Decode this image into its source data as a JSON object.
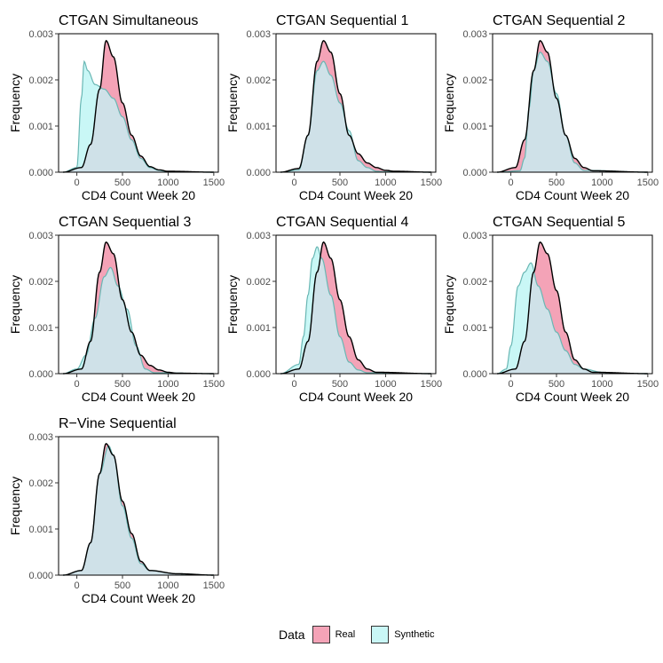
{
  "chart_data": [
    {
      "type": "area",
      "title": "CTGAN Simultaneous",
      "xlabel": "CD4 Count Week 20",
      "ylabel": "Frequency",
      "xlim": [
        -200,
        1550
      ],
      "ylim": [
        0,
        0.003
      ],
      "xticks": [
        0,
        500,
        1000,
        1500
      ],
      "yticks": [
        0,
        0.001,
        0.002,
        0.003
      ],
      "series": [
        {
          "name": "Real",
          "x": [
            -150,
            50,
            150,
            250,
            320,
            400,
            500,
            600,
            700,
            800,
            900,
            1000,
            1500
          ],
          "y": [
            0,
            0.0001,
            0.0006,
            0.0018,
            0.00285,
            0.0025,
            0.0015,
            0.0008,
            0.00035,
            0.00012,
            5e-05,
            2e-05,
            0
          ]
        },
        {
          "name": "Synthetic",
          "x": [
            -150,
            0,
            50,
            80,
            120,
            200,
            300,
            400,
            500,
            600,
            700,
            800,
            900,
            1000,
            1500
          ],
          "y": [
            0,
            0.0001,
            0.0016,
            0.0024,
            0.0022,
            0.0019,
            0.0018,
            0.0016,
            0.0012,
            0.0007,
            0.0003,
            0.0001,
            4e-05,
            1e-05,
            0
          ]
        }
      ]
    },
    {
      "type": "area",
      "title": "CTGAN Sequential 1",
      "xlabel": "CD4 Count Week 20",
      "ylabel": "Frequency",
      "xlim": [
        -200,
        1550
      ],
      "ylim": [
        0,
        0.003
      ],
      "xticks": [
        0,
        500,
        1000,
        1500
      ],
      "yticks": [
        0,
        0.001,
        0.002,
        0.003
      ],
      "series": [
        {
          "name": "Real",
          "x": [
            -150,
            50,
            150,
            250,
            320,
            400,
            500,
            600,
            700,
            800,
            900,
            1000,
            1100,
            1500
          ],
          "y": [
            0,
            8e-05,
            0.0008,
            0.0024,
            0.00285,
            0.0026,
            0.0017,
            0.0008,
            0.0004,
            0.0002,
            0.0001,
            4e-05,
            2e-05,
            0
          ]
        },
        {
          "name": "Synthetic",
          "x": [
            -150,
            50,
            150,
            250,
            320,
            400,
            500,
            600,
            700,
            800,
            900,
            1000,
            1500
          ],
          "y": [
            0,
            5e-05,
            0.0008,
            0.0022,
            0.0024,
            0.0021,
            0.0015,
            0.0009,
            0.00025,
            0.0001,
            2e-05,
            1e-05,
            0
          ]
        }
      ]
    },
    {
      "type": "area",
      "title": "CTGAN Sequential 2",
      "xlabel": "CD4 Count Week 20",
      "ylabel": "Frequency",
      "xlim": [
        -200,
        1550
      ],
      "ylim": [
        0,
        0.003
      ],
      "xticks": [
        0,
        500,
        1000,
        1500
      ],
      "yticks": [
        0,
        0.001,
        0.002,
        0.003
      ],
      "series": [
        {
          "name": "Real",
          "x": [
            -150,
            50,
            150,
            250,
            320,
            400,
            500,
            600,
            700,
            800,
            900,
            1500
          ],
          "y": [
            0,
            0.0001,
            0.0007,
            0.0022,
            0.00285,
            0.0026,
            0.0016,
            0.0008,
            0.0003,
            0.0001,
            3e-05,
            0
          ]
        },
        {
          "name": "Synthetic",
          "x": [
            -150,
            100,
            150,
            200,
            250,
            320,
            400,
            500,
            600,
            700,
            800,
            1500
          ],
          "y": [
            0,
            3e-05,
            0.0003,
            0.0014,
            0.0022,
            0.0026,
            0.0024,
            0.0017,
            0.0008,
            0.0002,
            4e-05,
            0
          ]
        }
      ]
    },
    {
      "type": "area",
      "title": "CTGAN Sequential 3",
      "xlabel": "CD4 Count Week 20",
      "ylabel": "Frequency",
      "xlim": [
        -200,
        1550
      ],
      "ylim": [
        0,
        0.003
      ],
      "xticks": [
        0,
        500,
        1000,
        1500
      ],
      "yticks": [
        0,
        0.001,
        0.002,
        0.003
      ],
      "series": [
        {
          "name": "Real",
          "x": [
            -150,
            50,
            150,
            250,
            320,
            400,
            500,
            600,
            700,
            800,
            900,
            1000,
            1100,
            1500
          ],
          "y": [
            0,
            0.0001,
            0.0007,
            0.0022,
            0.00285,
            0.0026,
            0.0016,
            0.0009,
            0.0004,
            0.00018,
            8e-05,
            3e-05,
            1e-05,
            0
          ]
        },
        {
          "name": "Synthetic",
          "x": [
            -150,
            0,
            100,
            200,
            300,
            370,
            450,
            550,
            650,
            750,
            850,
            1500
          ],
          "y": [
            0,
            0.0001,
            0.0004,
            0.0012,
            0.0021,
            0.0023,
            0.0019,
            0.0014,
            0.0006,
            0.0001,
            2e-05,
            0
          ]
        }
      ]
    },
    {
      "type": "area",
      "title": "CTGAN Sequential 4",
      "xlabel": "CD4 Count Week 20",
      "ylabel": "Frequency",
      "xlim": [
        -200,
        1550
      ],
      "ylim": [
        0,
        0.003
      ],
      "xticks": [
        0,
        500,
        1000,
        1500
      ],
      "yticks": [
        0,
        0.001,
        0.002,
        0.003
      ],
      "series": [
        {
          "name": "Real",
          "x": [
            -150,
            50,
            150,
            250,
            320,
            400,
            500,
            600,
            700,
            800,
            900,
            1500
          ],
          "y": [
            0,
            0.0001,
            0.0007,
            0.0022,
            0.00285,
            0.0025,
            0.0016,
            0.0008,
            0.0003,
            0.0001,
            3e-05,
            0
          ]
        },
        {
          "name": "Synthetic",
          "x": [
            -150,
            50,
            100,
            150,
            200,
            250,
            300,
            400,
            500,
            600,
            700,
            800,
            1500
          ],
          "y": [
            0,
            0.0002,
            0.0008,
            0.0017,
            0.0025,
            0.00275,
            0.0025,
            0.0017,
            0.0008,
            0.00025,
            8e-05,
            2e-05,
            0
          ]
        }
      ]
    },
    {
      "type": "area",
      "title": "CTGAN Sequential 5",
      "xlabel": "CD4 Count Week 20",
      "ylabel": "Frequency",
      "xlim": [
        -200,
        1550
      ],
      "ylim": [
        0,
        0.003
      ],
      "xticks": [
        0,
        500,
        1000,
        1500
      ],
      "yticks": [
        0,
        0.001,
        0.002,
        0.003
      ],
      "series": [
        {
          "name": "Real",
          "x": [
            -150,
            50,
            150,
            250,
            320,
            400,
            500,
            600,
            700,
            800,
            900,
            1500
          ],
          "y": [
            0,
            0.0001,
            0.0007,
            0.0022,
            0.00285,
            0.0026,
            0.0018,
            0.0009,
            0.0003,
            0.0001,
            3e-05,
            0
          ]
        },
        {
          "name": "Synthetic",
          "x": [
            -150,
            -50,
            0,
            80,
            150,
            220,
            300,
            400,
            500,
            600,
            700,
            800,
            1000,
            1100,
            1500
          ],
          "y": [
            0,
            0.0001,
            0.0006,
            0.0019,
            0.0022,
            0.0024,
            0.0019,
            0.0014,
            0.0009,
            0.0005,
            0.0002,
            0.0001,
            3e-05,
            1e-05,
            0
          ]
        }
      ]
    },
    {
      "type": "area",
      "title": "R−Vine Sequential",
      "xlabel": "CD4 Count Week 20",
      "ylabel": "Frequency",
      "xlim": [
        -200,
        1550
      ],
      "ylim": [
        0,
        0.003
      ],
      "xticks": [
        0,
        500,
        1000,
        1500
      ],
      "yticks": [
        0,
        0.001,
        0.002,
        0.003
      ],
      "series": [
        {
          "name": "Real",
          "x": [
            -150,
            50,
            150,
            250,
            320,
            400,
            500,
            600,
            700,
            800,
            1100,
            1500
          ],
          "y": [
            0,
            0.0001,
            0.0007,
            0.0022,
            0.00285,
            0.0026,
            0.0016,
            0.0009,
            0.0003,
            0.0001,
            3e-05,
            0
          ]
        },
        {
          "name": "Synthetic",
          "x": [
            -150,
            50,
            150,
            250,
            350,
            400,
            500,
            600,
            700,
            800,
            1100,
            1500
          ],
          "y": [
            0,
            0.0001,
            0.0007,
            0.0022,
            0.0028,
            0.0026,
            0.0015,
            0.0008,
            0.00025,
            0.0001,
            3e-05,
            0
          ]
        }
      ]
    }
  ],
  "legend": {
    "title": "Data",
    "items": [
      {
        "label": "Real",
        "color": "#f4a3b7"
      },
      {
        "label": "Synthetic",
        "color": "#c9f7f6"
      }
    ]
  },
  "colors": {
    "real_fill": "#f4a3b7",
    "synthetic_fill": "#c9f7f6",
    "overlap_fill": "#cfe1e8",
    "outline": "#000000",
    "synthetic_line": "#6ab7b4"
  }
}
